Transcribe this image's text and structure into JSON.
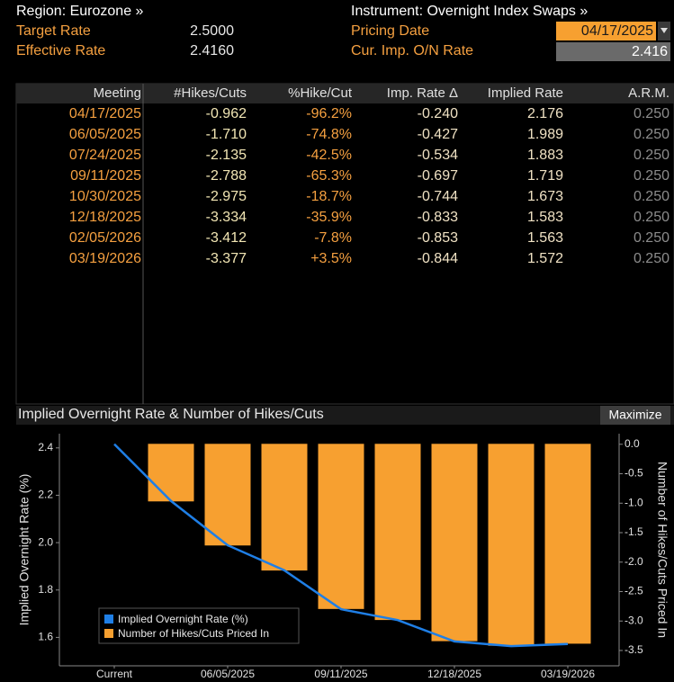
{
  "header": {
    "region": "Region: Eurozone »",
    "instrument": "Instrument: Overnight Index Swaps »",
    "target_rate_label": "Target Rate",
    "target_rate": "2.5000",
    "effective_rate_label": "Effective Rate",
    "effective_rate": "2.4160",
    "pricing_date_label": "Pricing Date",
    "pricing_date": "04/17/2025",
    "cur_rate_label": "Cur. Imp. O/N Rate",
    "cur_rate": "2.416"
  },
  "table": {
    "columns": [
      "Meeting",
      "#Hikes/Cuts",
      "%Hike/Cut",
      "Imp. Rate Δ",
      "Implied Rate",
      "A.R.M."
    ],
    "rows": [
      [
        "04/17/2025",
        "-0.962",
        "-96.2%",
        "-0.240",
        "2.176",
        "0.250"
      ],
      [
        "06/05/2025",
        "-1.710",
        "-74.8%",
        "-0.427",
        "1.989",
        "0.250"
      ],
      [
        "07/24/2025",
        "-2.135",
        "-42.5%",
        "-0.534",
        "1.883",
        "0.250"
      ],
      [
        "09/11/2025",
        "-2.788",
        "-65.3%",
        "-0.697",
        "1.719",
        "0.250"
      ],
      [
        "10/30/2025",
        "-2.975",
        "-18.7%",
        "-0.744",
        "1.673",
        "0.250"
      ],
      [
        "12/18/2025",
        "-3.334",
        "-35.9%",
        "-0.833",
        "1.583",
        "0.250"
      ],
      [
        "02/05/2026",
        "-3.412",
        "-7.8%",
        "-0.853",
        "1.563",
        "0.250"
      ],
      [
        "03/19/2026",
        "-3.377",
        "+3.5%",
        "-0.844",
        "1.572",
        "0.250"
      ]
    ]
  },
  "chart_data": {
    "type": "combo",
    "title": "Implied Overnight Rate & Number of Hikes/Cuts",
    "button": "Maximize",
    "ylabel": "Implied Overnight Rate (%)",
    "y2label": "Number of Hikes/Cuts Priced In",
    "categories": [
      "Current",
      null,
      "06/05/2025",
      null,
      "09/11/2025",
      null,
      "12/18/2025",
      null,
      "03/19/2026"
    ],
    "series": [
      {
        "name": "Implied Overnight Rate (%)",
        "type": "line",
        "color": "#1f7fe6",
        "values": [
          2.416,
          2.176,
          1.989,
          1.883,
          1.719,
          1.673,
          1.583,
          1.563,
          1.572
        ]
      },
      {
        "name": "Number of Hikes/Cuts Priced In",
        "type": "bar",
        "axis": "y2",
        "color": "#f7a030",
        "values": [
          0,
          -0.962,
          -1.71,
          -2.135,
          -2.788,
          -2.975,
          -3.334,
          -3.412,
          -3.377
        ]
      }
    ],
    "ylim": [
      1.48,
      2.46
    ],
    "yticks": [
      1.6,
      1.8,
      {
        "value": 2,
        "label": "2.0"
      },
      2.2,
      2.4
    ],
    "y2lim": [
      -3.76,
      0.18
    ],
    "y2ticks": [
      {
        "value": 0,
        "label": "0.0"
      },
      -0.5,
      {
        "value": -1,
        "label": "-1.0"
      },
      -1.5,
      {
        "value": -2,
        "label": "-2.0"
      },
      -2.5,
      {
        "value": -3,
        "label": "-3.0"
      },
      -3.5
    ],
    "legend": "bottom-left",
    "grid": false
  }
}
